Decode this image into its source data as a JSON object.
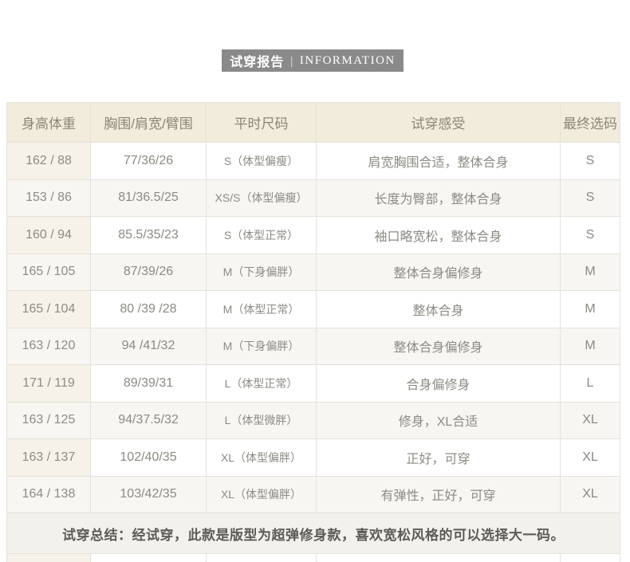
{
  "header": {
    "title_cn": "试穿报告",
    "divider": "|",
    "title_en": "INFORMATION",
    "bar_color": "#8a8a8a"
  },
  "table": {
    "columns": [
      "身高体重",
      "胸围/肩宽/臂围",
      "平时尺码",
      "试穿感受",
      "最终选码"
    ],
    "rows": [
      {
        "height_weight": "162 / 88",
        "measurements": "77/36/26",
        "usual_size": "S（体型偏瘦）",
        "feedback": "肩宽胸围合适，整体合身",
        "final_size": "S"
      },
      {
        "height_weight": "153 / 86",
        "measurements": "81/36.5/25",
        "usual_size": "XS/S（体型偏瘦）",
        "feedback": "长度为臀部，整体合身",
        "final_size": "S"
      },
      {
        "height_weight": "160 / 94",
        "measurements": "85.5/35/23",
        "usual_size": "S（体型正常）",
        "feedback": "袖口略宽松，整体合身",
        "final_size": "S"
      },
      {
        "height_weight": "165 / 105",
        "measurements": "87/39/26",
        "usual_size": "M（下身偏胖）",
        "feedback": "整体合身偏修身",
        "final_size": "M"
      },
      {
        "height_weight": "165 / 104",
        "measurements": "80 /39 /28",
        "usual_size": "M（体型正常）",
        "feedback": "整体合身",
        "final_size": "M"
      },
      {
        "height_weight": "163 / 120",
        "measurements": "94 /41/32",
        "usual_size": "M（下身偏胖）",
        "feedback": "整体合身偏修身",
        "final_size": "M"
      },
      {
        "height_weight": "171 / 119",
        "measurements": "89/39/31",
        "usual_size": "L（体型正常）",
        "feedback": "合身偏修身",
        "final_size": "L"
      },
      {
        "height_weight": "163 / 125",
        "measurements": "94/37.5/32",
        "usual_size": "L（体型微胖）",
        "feedback": "修身，XL合适",
        "final_size": "XL"
      },
      {
        "height_weight": "163 / 137",
        "measurements": "102/40/35",
        "usual_size": "XL（体型偏胖）",
        "feedback": "正好，可穿",
        "final_size": "XL"
      },
      {
        "height_weight": "164 / 138",
        "measurements": "103/42/35",
        "usual_size": "XL（体型偏胖）",
        "feedback": "有弹性，正好，可穿",
        "final_size": "XL"
      }
    ],
    "summary": "试穿总结：经试穿，此款是版型为超弹修身款，喜欢宽松风格的可以选择大一码。",
    "colors": {
      "header_bg": "#f2ecdd",
      "first_col_bg": "#f6f2e9",
      "even_row_bg": "#f7f6f2",
      "summary_bg": "#f2f1ec",
      "border": "#e5e2d9",
      "text": "#8b8b83"
    }
  }
}
